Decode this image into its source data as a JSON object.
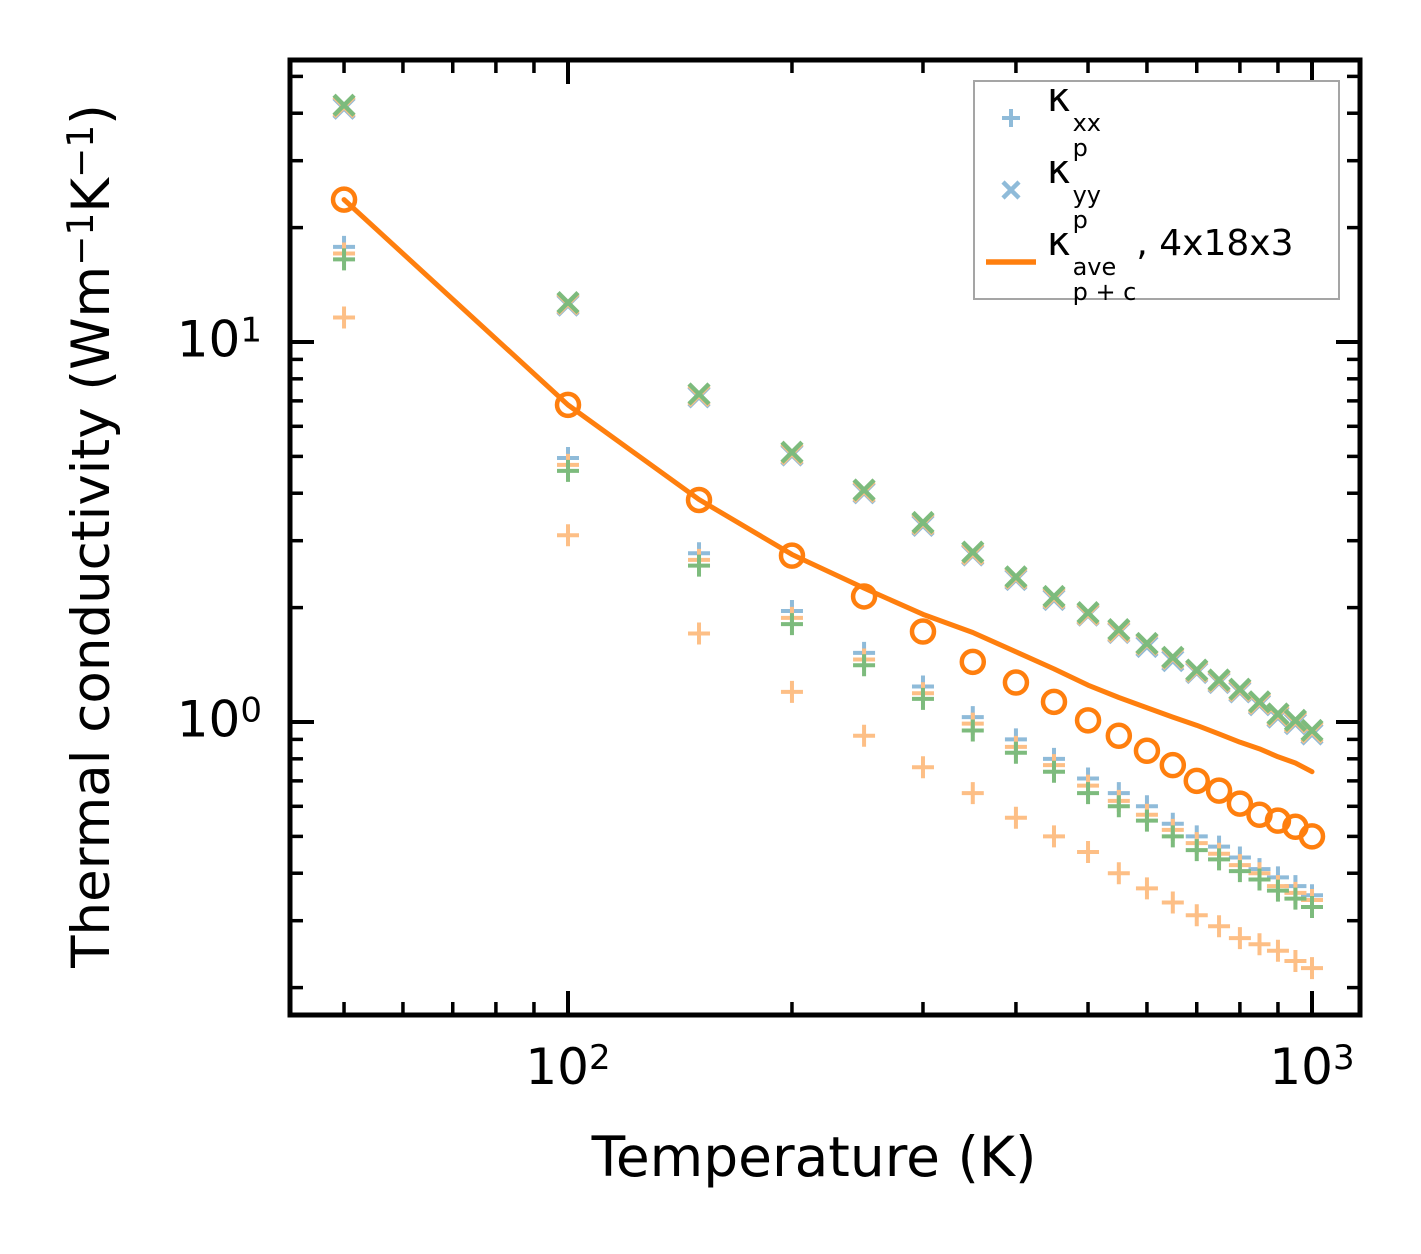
{
  "palette": {
    "light_blue": "#8fbbd9",
    "light_green": "#7dbb7d",
    "light_orange": "#fdbf86",
    "orange": "#ff7f0e",
    "axis": "#000000",
    "legend_border": "#a5a5a5"
  },
  "labels": {
    "xlabel": "Temperature (K)",
    "ylabel_pre": "Thermal conductivity (Wm",
    "ylabel_sup1": "−1",
    "ylabel_mid": "K",
    "ylabel_sup2": "−1",
    "ylabel_post": ")",
    "ylabel_plain": "Thermal conductivity (Wm⁻¹K⁻¹)"
  },
  "ticks": {
    "x_labels": [
      {
        "base": "10",
        "exp": "2",
        "value": 100
      },
      {
        "base": "10",
        "exp": "3",
        "value": 1000
      }
    ],
    "y_labels": [
      {
        "base": "10",
        "exp": "1",
        "value": 10
      },
      {
        "base": "10",
        "exp": "0",
        "value": 1
      }
    ]
  },
  "legend": {
    "position": "upper right",
    "items": [
      {
        "marker": "plus",
        "color_key": "light_blue",
        "symbol": "κ",
        "sup": "xx",
        "sub": "p",
        "suffix": ""
      },
      {
        "marker": "x",
        "color_key": "light_blue",
        "symbol": "κ",
        "sup": "yy",
        "sub": "p",
        "suffix": ""
      },
      {
        "marker": "line",
        "color_key": "orange",
        "symbol": "κ",
        "sup": "ave",
        "sub": "p + c",
        "suffix": ", 4x18x3"
      }
    ]
  },
  "chart_data": {
    "type": "scatter",
    "title": "",
    "xlabel": "Temperature (K)",
    "ylabel": "Thermal conductivity (Wm-1K-1)",
    "x_scale": "log",
    "y_scale": "log",
    "xlim": [
      42.3,
      1160
    ],
    "ylim": [
      0.169,
      55.2
    ],
    "grid": false,
    "x_ticks_major": [
      100,
      1000
    ],
    "x_ticks_minor": [
      50,
      60,
      70,
      80,
      90,
      200,
      300,
      400,
      500,
      600,
      700,
      800,
      900
    ],
    "y_ticks_major": [
      1,
      10
    ],
    "y_ticks_minor": [
      0.2,
      0.3,
      0.4,
      0.5,
      0.6,
      0.7,
      0.8,
      0.9,
      2,
      3,
      4,
      5,
      6,
      7,
      8,
      9,
      20,
      30,
      40,
      50
    ],
    "x": [
      50,
      100,
      150,
      200,
      250,
      300,
      350,
      400,
      450,
      500,
      550,
      600,
      650,
      700,
      750,
      800,
      850,
      900,
      950,
      1000
    ],
    "series": [
      {
        "name": "kappa_p_yy_blue",
        "marker": "x",
        "color_key": "light_blue",
        "values": [
          41.2,
          12.5,
          7.17,
          5.04,
          4.01,
          3.29,
          2.75,
          2.37,
          2.1,
          1.91,
          1.72,
          1.58,
          1.45,
          1.35,
          1.27,
          1.2,
          1.11,
          1.03,
          0.99,
          0.93
        ]
      },
      {
        "name": "kappa_p_yy_orange",
        "marker": "x",
        "color_key": "light_orange",
        "values": [
          41.6,
          12.6,
          7.23,
          5.08,
          4.04,
          3.32,
          2.77,
          2.39,
          2.12,
          1.92,
          1.73,
          1.6,
          1.47,
          1.36,
          1.28,
          1.21,
          1.12,
          1.04,
          1.0,
          0.94
        ]
      },
      {
        "name": "kappa_p_yy_green",
        "marker": "x",
        "color_key": "light_green",
        "values": [
          42.0,
          12.7,
          7.3,
          5.13,
          4.08,
          3.35,
          2.8,
          2.41,
          2.14,
          1.94,
          1.75,
          1.61,
          1.48,
          1.37,
          1.29,
          1.22,
          1.13,
          1.05,
          1.01,
          0.95
        ]
      },
      {
        "name": "kappa_p_xx_blue",
        "marker": "plus",
        "color_key": "light_blue",
        "values": [
          17.8,
          4.95,
          2.78,
          1.96,
          1.52,
          1.24,
          1.03,
          0.9,
          0.8,
          0.71,
          0.65,
          0.6,
          0.54,
          0.5,
          0.47,
          0.44,
          0.41,
          0.39,
          0.37,
          0.35
        ]
      },
      {
        "name": "kappa_p_xx_orange",
        "marker": "plus",
        "color_key": "light_orange",
        "values": [
          17.1,
          4.75,
          2.67,
          1.88,
          1.46,
          1.19,
          0.99,
          0.86,
          0.77,
          0.68,
          0.62,
          0.57,
          0.52,
          0.48,
          0.45,
          0.42,
          0.4,
          0.37,
          0.355,
          0.34
        ]
      },
      {
        "name": "kappa_p_xx_green",
        "marker": "plus",
        "color_key": "light_green",
        "values": [
          16.5,
          4.58,
          2.58,
          1.81,
          1.41,
          1.15,
          0.95,
          0.83,
          0.74,
          0.65,
          0.6,
          0.55,
          0.5,
          0.46,
          0.435,
          0.405,
          0.385,
          0.36,
          0.343,
          0.326
        ]
      },
      {
        "name": "kappa_p_xx_orange_low",
        "marker": "plus",
        "color_key": "light_orange",
        "values": [
          11.6,
          3.1,
          1.71,
          1.2,
          0.92,
          0.76,
          0.65,
          0.56,
          0.5,
          0.455,
          0.4,
          0.365,
          0.335,
          0.31,
          0.29,
          0.27,
          0.26,
          0.25,
          0.235,
          0.225
        ]
      },
      {
        "name": "kappa_p_plus_c_ave_line_4x18x3",
        "marker": "line",
        "color_key": "orange",
        "values": [
          23.7,
          6.83,
          3.85,
          2.76,
          2.25,
          1.92,
          1.72,
          1.53,
          1.38,
          1.25,
          1.16,
          1.09,
          1.03,
          0.98,
          0.93,
          0.885,
          0.85,
          0.81,
          0.78,
          0.74
        ]
      },
      {
        "name": "kappa_p_plus_c_ave_circles",
        "marker": "circle",
        "color_key": "orange",
        "values": [
          23.7,
          6.83,
          3.84,
          2.74,
          2.14,
          1.73,
          1.44,
          1.27,
          1.13,
          1.01,
          0.92,
          0.84,
          0.77,
          0.7,
          0.66,
          0.61,
          0.57,
          0.55,
          0.53,
          0.5
        ]
      }
    ]
  }
}
